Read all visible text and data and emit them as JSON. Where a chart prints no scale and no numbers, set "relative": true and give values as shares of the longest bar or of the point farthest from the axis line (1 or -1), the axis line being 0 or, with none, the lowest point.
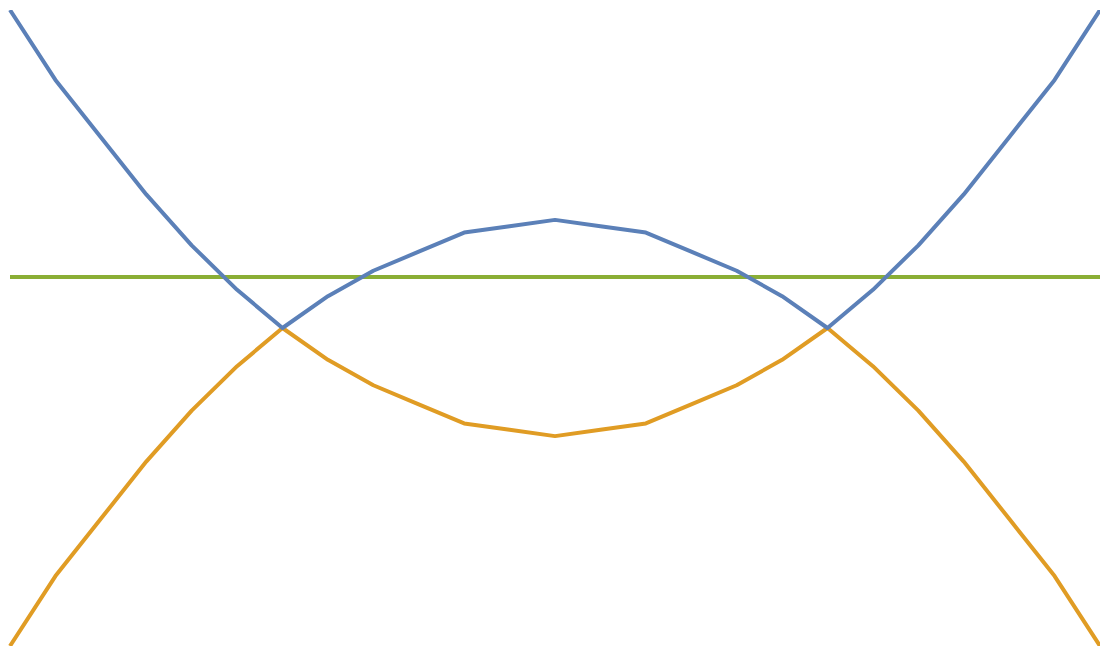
{
  "chart_data": {
    "type": "line",
    "relative": true,
    "grid": false,
    "legend": false,
    "marker": "none",
    "line_style": "solid",
    "categories": [
      null,
      null,
      null,
      null,
      null,
      null,
      null,
      null,
      null,
      null,
      null,
      null,
      null,
      null,
      null,
      null,
      null,
      null,
      null,
      null,
      null,
      null,
      null,
      null,
      null
    ],
    "series": [
      {
        "color": "#5b80b8",
        "values": [
          1,
          0.89,
          0.8,
          0.71,
          0.63,
          0.56,
          0.5,
          0.55,
          0.59,
          0.62,
          0.65,
          0.66,
          0.67,
          0.66,
          0.65,
          0.62,
          0.59,
          0.55,
          0.5,
          0.56,
          0.63,
          0.71,
          0.8,
          0.89,
          1
        ]
      },
      {
        "color": "#e09c24",
        "values": [
          0,
          0.11,
          0.2,
          0.29,
          0.37,
          0.44,
          0.5,
          0.45,
          0.41,
          0.38,
          0.35,
          0.34,
          0.33,
          0.34,
          0.35,
          0.38,
          0.41,
          0.45,
          0.5,
          0.44,
          0.37,
          0.29,
          0.2,
          0.11,
          0
        ]
      },
      {
        "color": "#8aae35",
        "values": [
          0.58,
          0.58,
          0.58,
          0.58,
          0.58,
          0.58,
          0.58,
          0.58,
          0.58,
          0.58,
          0.58,
          0.58,
          0.58,
          0.58,
          0.58,
          0.58,
          0.58,
          0.58,
          0.58,
          0.58,
          0.58,
          0.58,
          0.58,
          0.58,
          0.58
        ]
      }
    ]
  }
}
